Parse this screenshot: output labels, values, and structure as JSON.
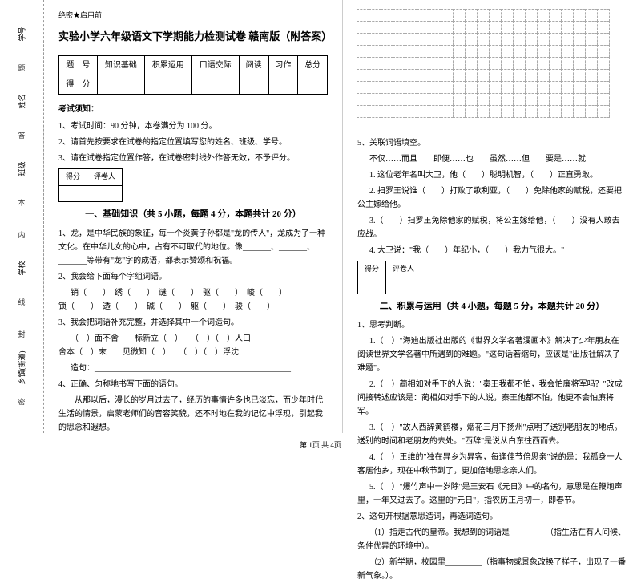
{
  "margin": {
    "f1": "学号",
    "f2": "姓名",
    "f3": "班级",
    "f4": "学校",
    "f5": "乡镇(街道)",
    "m1": "题",
    "m2": "答",
    "m3": "本",
    "m4": "内",
    "m5": "线",
    "m6": "封",
    "m7": "密"
  },
  "header": {
    "secret": "绝密★启用前"
  },
  "title": "实验小学六年级语文下学期能力检测试卷 赣南版（附答案）",
  "score_headers": [
    "题　号",
    "知识基础",
    "积累运用",
    "口语交际",
    "阅读",
    "习作",
    "总分"
  ],
  "score_row": "得　分",
  "notice_title": "考试须知：",
  "notices": [
    "1、考试时间：90 分钟，本卷满分为 100 分。",
    "2、请首先按要求在试卷的指定位置填写您的姓名、班级、学号。",
    "3、请在试卷指定位置作答，在试卷密封线外作答无效，不予评分。"
  ],
  "mini_head": [
    "得分",
    "评卷人"
  ],
  "section1": "一、基础知识（共 5 小题，每题 4 分，本题共计 20 分）",
  "q1_1": "1、龙，是中华民族的象征，每一个炎黄子孙都是\"龙的传人\"，龙成为了一种文化。在中华儿女的心中，占有不可取代的地位。像_______、_______、_______等带有\"龙\"字的成语，都表示赞颂和祝福。",
  "q1_2": "2、我会给下面每个字组词语。",
  "q1_2_words": "销（　　）  绣（　　）  谜（　　）  驱（　　）  峻（　　）\n锁（　　）  透（　　）  碱（　　）  躯（　　）  骏（　　）",
  "q1_3": "3、我会把词语补充完整，并选择其中一个词造句。",
  "q1_3_words": "（　）面不舍　　标新立（　）　　（　）（　）人口\n舍本（　）末　　见微知（　）　　（　）（　）浮沈",
  "q1_3_make": "造句：_________________________________________________",
  "q1_4": "4、正确、匀称地书写下面的语句。",
  "q1_4_text": "　　从那以后，漫长的岁月过去了，经历的事情许多也已淡忘，而少年时代生活的情景，启蒙老师们的音容笑貌，还不时地在我的记忆中浮现，引起我的思念和遐想。",
  "q2_5": "5、关联词语填空。",
  "q2_5_words": "不仅……而且　　即便……也　　虽然……但　　要是……就",
  "q2_5_1": "1. 这位老年名叫大卫，他（　　）聪明机智，（　　）正直勇敢。",
  "q2_5_2": "2. 扫罗王说谁（　　）打败了歌利亚，（　　）免除他家的赋税，还要把公主嫁给他。",
  "q2_5_3": "3.（　　）扫罗王免除他家的赋税，将公主嫁给他，（　　）没有人敢去应战。",
  "q2_5_4": "4. 大卫说：\"我（　　）年纪小，（　　）我力气很大。\"",
  "section2": "二、积累与运用（共 4 小题，每题 5 分，本题共计 20 分）",
  "q3_1": "1、思考判断。",
  "q3_1_1": "1.（　）\"海迪出版社出版的《世界文学名著漫画本》解决了少年朋友在阅读世界文学名著中所遇到的难题。\"这句话若缩句，应该是\"出版社解决了难题\"。",
  "q3_1_2": "2.（　）蔺相如对手下的人说：\"秦王我都不怕，我会怕廉将军吗？\"改成间接转述应该是：蔺相如对手下的人说，秦王他都不怕，他更不会怕廉将军。",
  "q3_1_3": "3.（　）\"故人西辞黄鹤楼，烟花三月下扬州\"点明了送别老朋友的地点。送别的时间和老朋友的去处。\"西辞\"是说从白东往西而去。",
  "q3_1_4": "4.（　）王维的\"独在异乡为异客，每逢佳节倍思亲\"说的是：我孤身一人客居他乡，现在中秋节到了，更加倍地思念亲人们。",
  "q3_1_5": "5.（　）\"爆竹声中一岁除\"是王安石《元日》中的名句，意思是在鞭炮声里，一年又过去了。这里的\"元日\"，指农历正月初一，即春节。",
  "q3_2": "2、这句开根据意思造词，再选词造句。",
  "q3_2_1": "（1）指走古代的皇帝。我想到的词语是_________（指生活在有人间候、条件优异的环境中）。",
  "q3_2_2": "（2）新学期，校园里_________（指事物或景象改换了样子，出现了一番新气象。）。",
  "footer": "第 1页 共 4页"
}
